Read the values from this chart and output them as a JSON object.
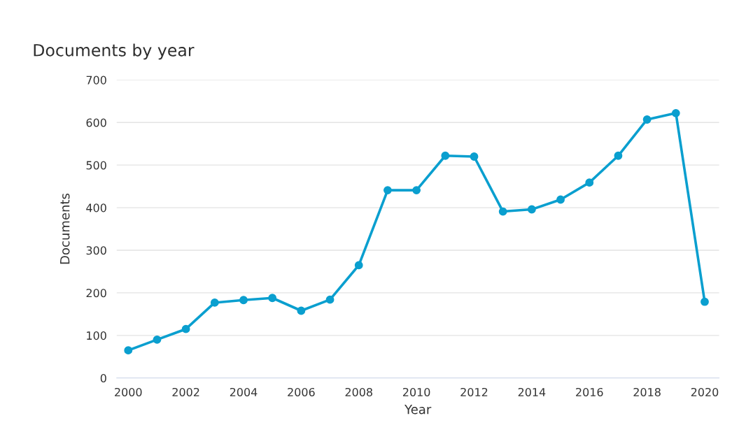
{
  "chart_data": {
    "type": "line",
    "title": "Documents by year",
    "xlabel": "Year",
    "ylabel": "Documents",
    "x": [
      2000,
      2001,
      2002,
      2003,
      2004,
      2005,
      2006,
      2007,
      2008,
      2009,
      2010,
      2011,
      2012,
      2013,
      2014,
      2015,
      2016,
      2017,
      2018,
      2019,
      2020
    ],
    "series": [
      {
        "color": "#0a9fcf",
        "values": [
          65,
          90,
          115,
          177,
          183,
          188,
          158,
          184,
          265,
          441,
          441,
          522,
          520,
          391,
          396,
          419,
          459,
          522,
          607,
          622,
          179
        ]
      }
    ],
    "xlim": [
      1999.6,
      2020.5
    ],
    "xticks": [
      2000,
      2002,
      2004,
      2006,
      2008,
      2010,
      2012,
      2014,
      2016,
      2018,
      2020
    ],
    "ylim": [
      0,
      700
    ],
    "yticks": [
      0,
      100,
      200,
      300,
      400,
      500,
      600,
      700
    ],
    "grid": "y",
    "marker": "circle",
    "line_style": "solid",
    "legend": false
  }
}
